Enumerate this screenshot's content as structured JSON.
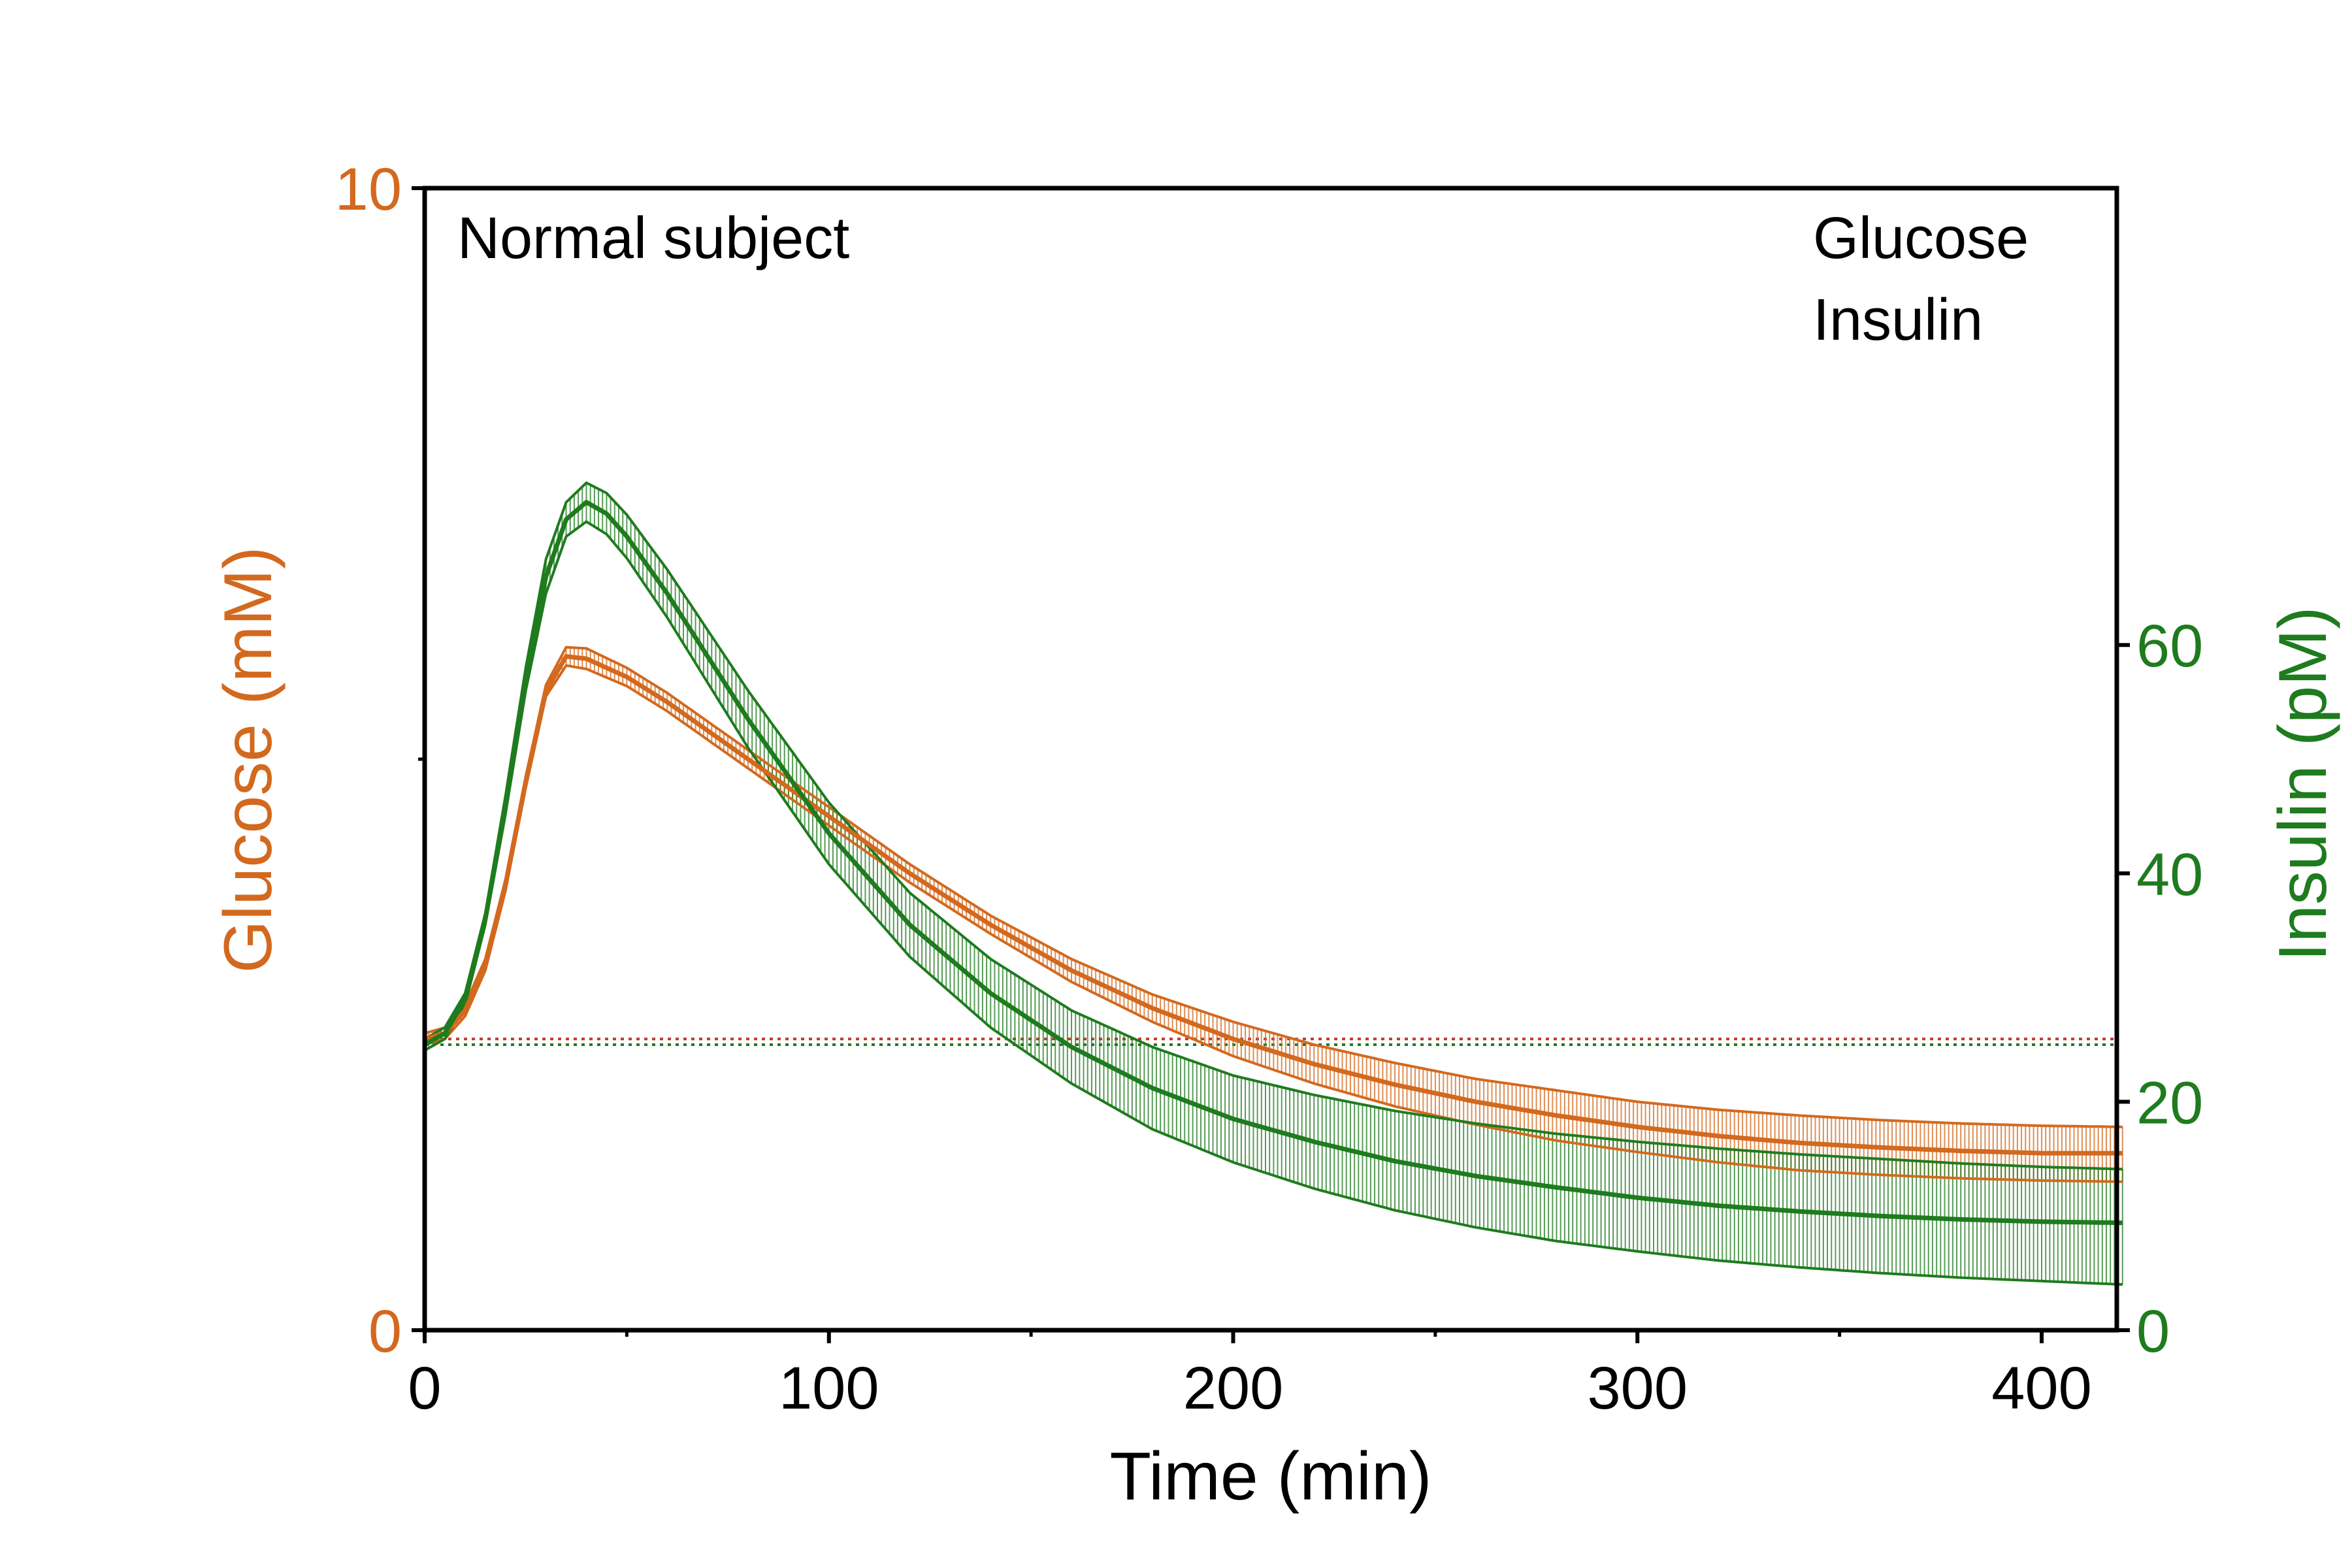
{
  "chart_data": {
    "type": "line",
    "title": "",
    "annotation": "Normal subject",
    "xlabel": "Time (min)",
    "ylabel_left": "Glucose (mM)",
    "ylabel_right": "Insulin (pM)",
    "xlim": [
      0,
      420
    ],
    "ylim_left": [
      0,
      10
    ],
    "ylim_right": [
      0,
      100
    ],
    "x_ticks": [
      "0",
      "100",
      "200",
      "300",
      "400"
    ],
    "y_left_ticks": [
      "0",
      "10"
    ],
    "y_right_ticks": [
      "0",
      "20",
      "40",
      "60"
    ],
    "grid": false,
    "legend_position": "top-right",
    "colors": {
      "glucose": "#D2691E",
      "insulin": "#1E7B1E"
    },
    "series": [
      {
        "name": "Glucose",
        "axis": "left",
        "color": "#D2691E",
        "x": [
          0,
          5,
          10,
          15,
          20,
          25,
          30,
          35,
          40,
          50,
          60,
          70,
          80,
          100,
          120,
          140,
          160,
          180,
          200,
          220,
          240,
          260,
          280,
          300,
          320,
          340,
          360,
          380,
          400,
          420
        ],
        "y": [
          2.55,
          2.6,
          2.8,
          3.2,
          3.9,
          4.8,
          5.6,
          5.9,
          5.88,
          5.72,
          5.5,
          5.25,
          5.0,
          4.5,
          4.0,
          3.55,
          3.15,
          2.82,
          2.55,
          2.33,
          2.15,
          2.0,
          1.88,
          1.78,
          1.7,
          1.64,
          1.6,
          1.57,
          1.55,
          1.55
        ],
        "upper": [
          2.6,
          2.65,
          2.85,
          3.25,
          3.95,
          4.85,
          5.65,
          5.98,
          5.97,
          5.8,
          5.58,
          5.33,
          5.08,
          4.58,
          4.08,
          3.63,
          3.25,
          2.94,
          2.7,
          2.5,
          2.34,
          2.2,
          2.1,
          2.0,
          1.93,
          1.88,
          1.84,
          1.81,
          1.79,
          1.78
        ],
        "lower": [
          2.5,
          2.55,
          2.75,
          3.15,
          3.85,
          4.75,
          5.55,
          5.82,
          5.79,
          5.64,
          5.42,
          5.17,
          4.92,
          4.42,
          3.92,
          3.47,
          3.05,
          2.7,
          2.4,
          2.16,
          1.96,
          1.8,
          1.66,
          1.56,
          1.47,
          1.4,
          1.36,
          1.33,
          1.31,
          1.3
        ]
      },
      {
        "name": "Insulin",
        "axis": "right",
        "color": "#1E7B1E",
        "x": [
          0,
          5,
          10,
          15,
          20,
          25,
          30,
          35,
          40,
          45,
          50,
          60,
          70,
          80,
          100,
          120,
          140,
          160,
          180,
          200,
          220,
          240,
          260,
          280,
          300,
          320,
          340,
          360,
          380,
          400,
          420
        ],
        "y": [
          25,
          26,
          29,
          36,
          46,
          57,
          66,
          71,
          72.5,
          71.5,
          69.5,
          64.5,
          59,
          53.5,
          43.5,
          35.5,
          29.5,
          24.8,
          21.2,
          18.5,
          16.5,
          14.8,
          13.5,
          12.5,
          11.6,
          10.9,
          10.4,
          10.0,
          9.7,
          9.5,
          9.4
        ],
        "upper": [
          25.5,
          26.5,
          29.5,
          36.5,
          46.8,
          58,
          67.5,
          72.5,
          74.2,
          73.3,
          71.4,
          66.6,
          61.3,
          56,
          46.2,
          38.3,
          32.5,
          28,
          24.8,
          22.3,
          20.6,
          19.2,
          18.1,
          17.2,
          16.5,
          15.9,
          15.4,
          15.0,
          14.6,
          14.3,
          14.1
        ],
        "lower": [
          24.5,
          25.5,
          28.5,
          35.5,
          45.2,
          56,
          64.5,
          69.5,
          70.8,
          69.7,
          67.6,
          62.4,
          56.7,
          51,
          40.8,
          32.7,
          26.5,
          21.6,
          17.6,
          14.7,
          12.4,
          10.5,
          9.0,
          7.8,
          6.9,
          6.1,
          5.5,
          5.0,
          4.6,
          4.3,
          4.0
        ]
      }
    ],
    "baselines": [
      {
        "series": "Glucose",
        "value": 2.55,
        "axis": "left",
        "color": "#C0392B",
        "style": "dotted"
      },
      {
        "series": "Insulin",
        "value": 25,
        "axis": "right",
        "color": "#1E7B1E",
        "style": "dotted"
      }
    ]
  }
}
